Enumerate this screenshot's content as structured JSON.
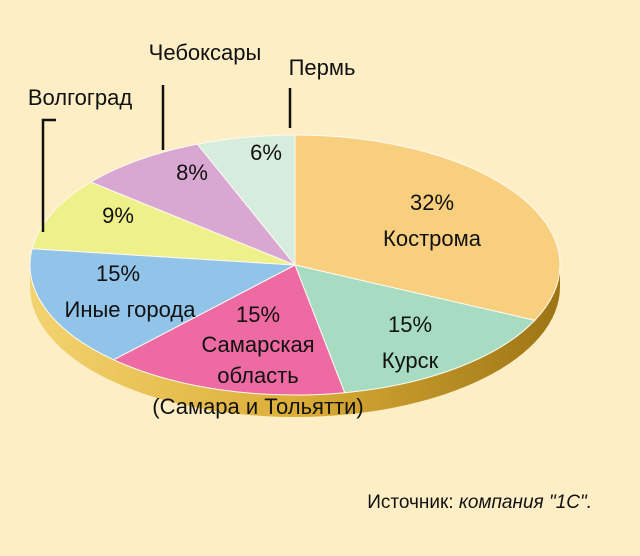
{
  "chart_data": {
    "type": "pie",
    "start": "12 o'clock, clockwise",
    "slices": [
      {
        "label": "Кострома",
        "value": 32,
        "pct": "32%",
        "color": "#f8cf7e"
      },
      {
        "label": "Курск",
        "value": 15,
        "pct": "15%",
        "color": "#a8dcc2"
      },
      {
        "label": "Самарская область (Самара и Тольятти)",
        "lines": [
          "Самарская",
          "область",
          "(Самара и Тольятти)"
        ],
        "value": 15,
        "pct": "15%",
        "color": "#ee6aa2"
      },
      {
        "label": "Иные города",
        "value": 15,
        "pct": "15%",
        "color": "#92c4ea"
      },
      {
        "label": "Волгоград",
        "value": 9,
        "pct": "9%",
        "color": "#eef08a"
      },
      {
        "label": "Чебоксары",
        "value": 8,
        "pct": "8%",
        "color": "#d9a8d2"
      },
      {
        "label": "Пермь",
        "value": 6,
        "pct": "6%",
        "color": "#d6ecdc"
      }
    ]
  },
  "source": {
    "prefix": "Источник: ",
    "company": "компания \"1С\"."
  },
  "colors": {
    "background": "#fdeec6",
    "rim": "#e2b544",
    "rim_dark": "#a07818"
  }
}
